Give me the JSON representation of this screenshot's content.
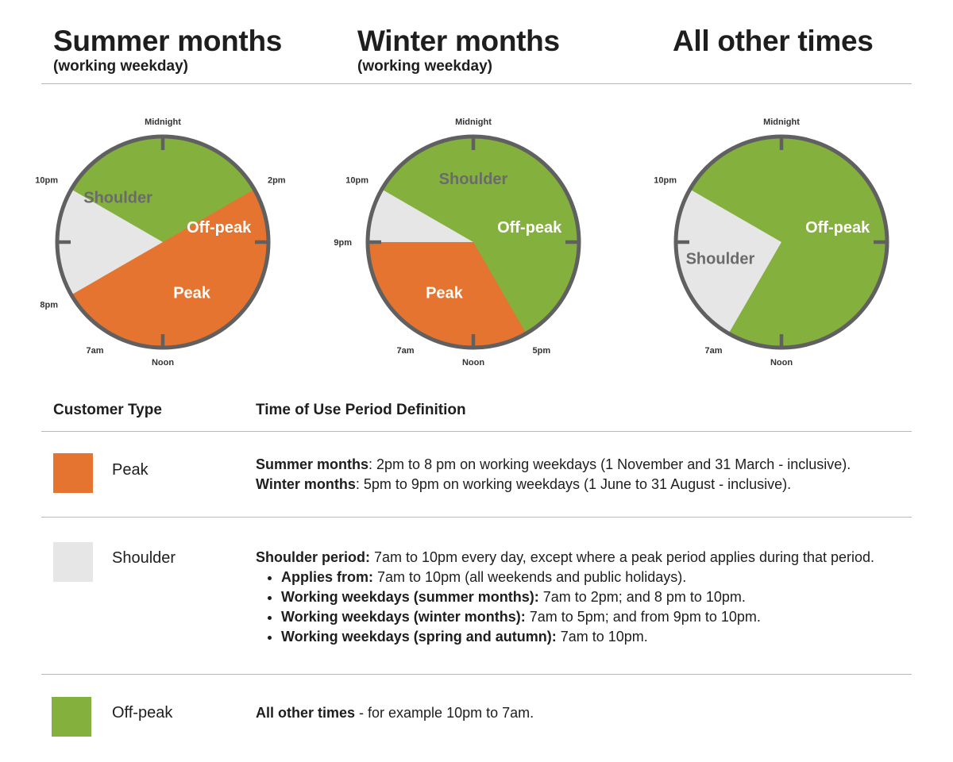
{
  "headings": [
    {
      "title": "Summer months",
      "subtitle": "(working weekday)"
    },
    {
      "title": "Winter months",
      "subtitle": "(working weekday)"
    },
    {
      "title": "All other times",
      "subtitle": ""
    }
  ],
  "colors": {
    "peak": "#e4742f",
    "shoulder": "#e6e6e6",
    "offpeak": "#84b03d",
    "ring": "#606060",
    "clock_text": "#333333"
  },
  "hour_labels": {
    "midnight": "Midnight",
    "noon": "Noon"
  },
  "clocks": [
    {
      "name": "summer-clock",
      "segments": [
        {
          "type": "offpeak",
          "label": "Off-peak",
          "start_hour": 22,
          "end_hour": 7
        },
        {
          "type": "shoulder",
          "label": "Shoulder",
          "start_hour": 7,
          "end_hour": 14
        },
        {
          "type": "peak",
          "label": "Peak",
          "start_hour": 14,
          "end_hour": 20
        },
        {
          "type": "shoulder",
          "label": "",
          "start_hour": 20,
          "end_hour": 22
        }
      ],
      "boundary_labels": [
        {
          "hour": 7,
          "text": "7am"
        },
        {
          "hour": 14,
          "text": "2pm"
        },
        {
          "hour": 20,
          "text": "8pm"
        },
        {
          "hour": 22,
          "text": "10pm"
        }
      ]
    },
    {
      "name": "winter-clock",
      "segments": [
        {
          "type": "offpeak",
          "label": "Off-peak",
          "start_hour": 22,
          "end_hour": 7
        },
        {
          "type": "shoulder",
          "label": "Shoulder",
          "start_hour": 7,
          "end_hour": 17
        },
        {
          "type": "peak",
          "label": "Peak",
          "start_hour": 17,
          "end_hour": 21
        },
        {
          "type": "shoulder",
          "label": "",
          "start_hour": 21,
          "end_hour": 22
        }
      ],
      "boundary_labels": [
        {
          "hour": 7,
          "text": "7am"
        },
        {
          "hour": 17,
          "text": "5pm"
        },
        {
          "hour": 21,
          "text": "9pm"
        },
        {
          "hour": 22,
          "text": "10pm"
        }
      ]
    },
    {
      "name": "other-times-clock",
      "segments": [
        {
          "type": "offpeak",
          "label": "Off-peak",
          "start_hour": 22,
          "end_hour": 7
        },
        {
          "type": "shoulder",
          "label": "Shoulder",
          "start_hour": 7,
          "end_hour": 22
        }
      ],
      "boundary_labels": [
        {
          "hour": 7,
          "text": "7am"
        },
        {
          "hour": 22,
          "text": "10pm"
        }
      ]
    }
  ],
  "table": {
    "col_customer_type": "Customer Type",
    "col_definition": "Time of Use Period Definition",
    "peak": {
      "label": "Peak",
      "summer_term": "Summer months",
      "summer_text": ": 2pm to 8 pm on working weekdays (1 November and 31 March - inclusive).",
      "winter_term": "Winter months",
      "winter_text": ": 5pm to 9pm on working weekdays (1 June to 31 August - inclusive)."
    },
    "shoulder": {
      "label": "Shoulder",
      "intro_term": "Shoulder period:",
      "intro_text": " 7am to 10pm every day, except where a peak period applies during that period.",
      "bullets": [
        {
          "term": "Applies from:",
          "text": " 7am to 10pm (all weekends and public holidays)."
        },
        {
          "term": "Working weekdays (summer months):",
          "text": " 7am to 2pm; and 8 pm to 10pm."
        },
        {
          "term": "Working weekdays (winter months):",
          "text": " 7am to 5pm; and from 9pm to 10pm."
        },
        {
          "term": "Working weekdays (spring and autumn):",
          "text": "  7am to 10pm."
        }
      ]
    },
    "offpeak": {
      "label": "Off-peak",
      "term": "All other times",
      "text": " - for example 10pm to 7am."
    }
  }
}
